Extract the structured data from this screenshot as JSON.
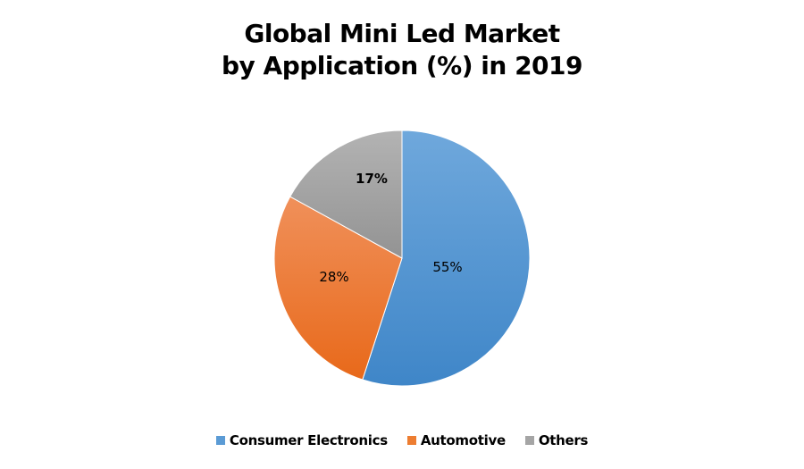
{
  "chart_data": {
    "type": "pie",
    "title_line1": "Global Mini Led Market",
    "title_line2": "by Application (%) in 2019",
    "start": "top",
    "direction": "clockwise",
    "legend_position": "bottom",
    "slices": [
      {
        "name": "Consumer Electronics",
        "value": 55,
        "label": "55%",
        "color": "#5b9bd5",
        "color_light": "#6fa8dc",
        "color_dark": "#3f86c8",
        "label_bold": false
      },
      {
        "name": "Automotive",
        "value": 28,
        "label": "28%",
        "color": "#ed7d31",
        "color_light": "#f0905a",
        "color_dark": "#e8691a",
        "label_bold": false
      },
      {
        "name": "Others",
        "value": 17,
        "label": "17%",
        "color": "#a5a5a5",
        "color_light": "#b3b3b3",
        "color_dark": "#939393",
        "label_bold": true
      }
    ]
  }
}
